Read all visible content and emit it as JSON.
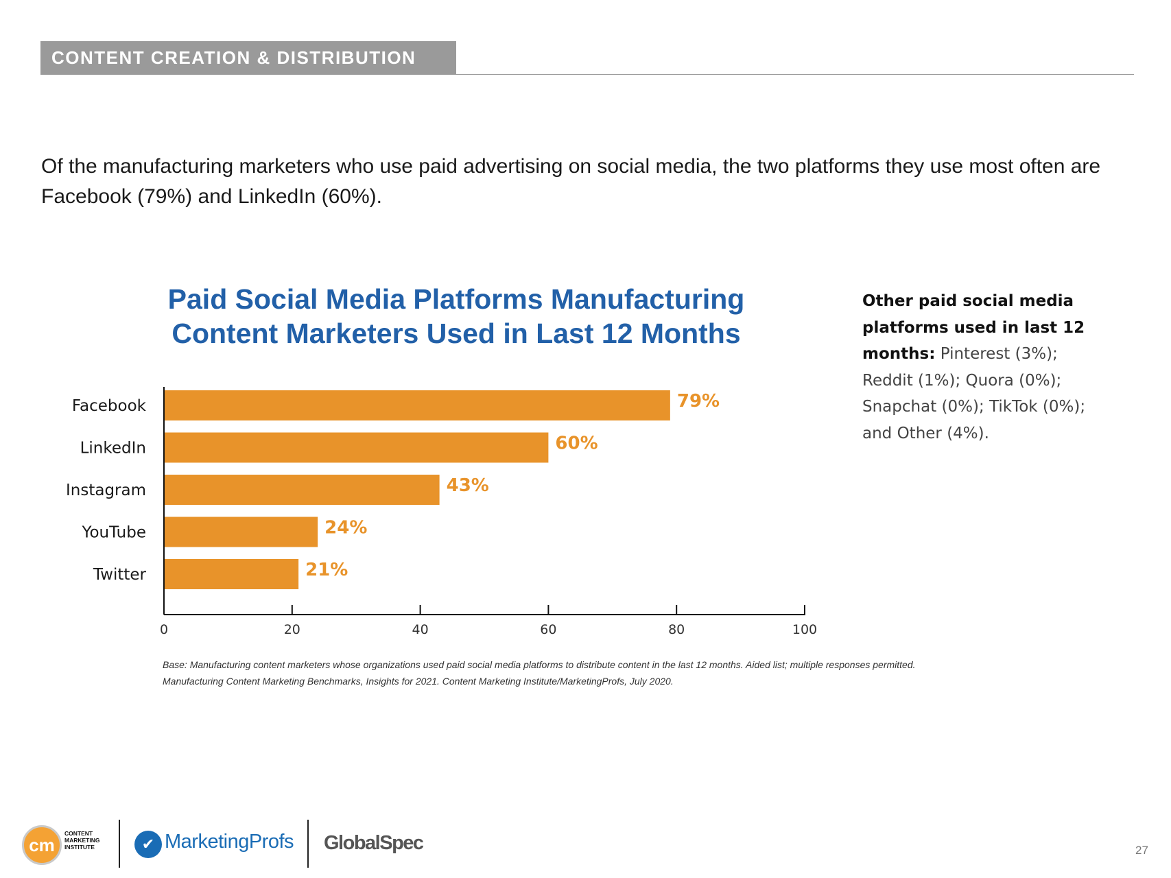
{
  "header": {
    "section_title": "CONTENT CREATION & DISTRIBUTION"
  },
  "intro_text": "Of the manufacturing marketers who use paid advertising on social media, the two platforms they use most often are Facebook (79%) and LinkedIn (60%).",
  "chart_data": {
    "type": "bar",
    "orientation": "horizontal",
    "title_line1": "Paid Social Media Platforms Manufacturing",
    "title_line2": "Content Marketers Used in Last 12 Months",
    "categories": [
      "Facebook",
      "LinkedIn",
      "Instagram",
      "YouTube",
      "Twitter"
    ],
    "values": [
      79,
      60,
      43,
      24,
      21
    ],
    "value_labels": [
      "79%",
      "60%",
      "43%",
      "24%",
      "21%"
    ],
    "xlim": [
      0,
      100
    ],
    "xticks": [
      0,
      20,
      40,
      60,
      80,
      100
    ],
    "xlabel": "",
    "ylabel": "",
    "grid": false,
    "bar_color": "#e8932a"
  },
  "side_note": {
    "bold": "Other paid social media platforms used in last 12 months:",
    "text": " Pinterest (3%); Reddit (1%); Quora (0%); Snapchat (0%); TikTok (0%); and Other (4%)."
  },
  "footnote": {
    "line1": "Base: Manufacturing content marketers whose organizations used paid social media platforms to distribute content in the last 12 months. Aided list; multiple responses permitted.",
    "line2": "Manufacturing Content Marketing Benchmarks, Insights for 2021. Content Marketing Institute/MarketingProfs, July 2020."
  },
  "footer": {
    "cmi_mark": "cm",
    "cmi_line1": "CONTENT",
    "cmi_line2": "MARKETING",
    "cmi_line3": "INSTITUTE",
    "marketingprofs": "MarketingProfs",
    "globalspec": "GlobalSpec"
  },
  "page_number": "27",
  "colors": {
    "accent": "#e8932a",
    "title_blue": "#2260a8",
    "section_gray": "#9a9a9a"
  }
}
